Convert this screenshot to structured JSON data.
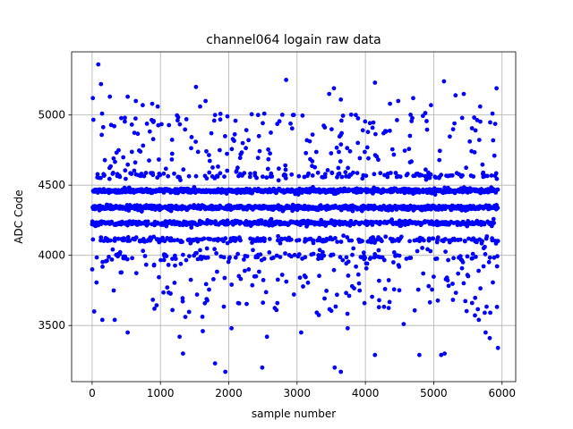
{
  "chart_data": {
    "type": "scatter",
    "title": "channel064 logain raw data",
    "xlabel": "sample number",
    "ylabel": "ADC Code",
    "xlim": [
      -300,
      6200
    ],
    "ylim": [
      3100,
      5450
    ],
    "x_ticks": [
      0,
      1000,
      2000,
      3000,
      4000,
      5000,
      6000
    ],
    "y_ticks": [
      3500,
      4000,
      4500,
      5000
    ],
    "grid": true,
    "marker_color": "#0000ff",
    "sample_range": [
      0,
      5940
    ],
    "band_levels": [
      4460,
      4340,
      4230,
      4110,
      4570,
      3990
    ],
    "outliers": [
      {
        "x": 10,
        "y": 5120
      },
      {
        "x": 90,
        "y": 5360
      },
      {
        "x": 130,
        "y": 5220
      },
      {
        "x": 260,
        "y": 5130
      },
      {
        "x": 480,
        "y": 4980
      },
      {
        "x": 520,
        "y": 5130
      },
      {
        "x": 640,
        "y": 5100
      },
      {
        "x": 740,
        "y": 5070
      },
      {
        "x": 880,
        "y": 5080
      },
      {
        "x": 960,
        "y": 5060
      },
      {
        "x": 1380,
        "y": 4970
      },
      {
        "x": 1520,
        "y": 5200
      },
      {
        "x": 1580,
        "y": 5060
      },
      {
        "x": 1660,
        "y": 5100
      },
      {
        "x": 1800,
        "y": 5000
      },
      {
        "x": 1980,
        "y": 4990
      },
      {
        "x": 2430,
        "y": 5000
      },
      {
        "x": 2520,
        "y": 5010
      },
      {
        "x": 2840,
        "y": 5250
      },
      {
        "x": 2940,
        "y": 5000
      },
      {
        "x": 3470,
        "y": 5150
      },
      {
        "x": 3540,
        "y": 5190
      },
      {
        "x": 3640,
        "y": 5110
      },
      {
        "x": 3860,
        "y": 5000
      },
      {
        "x": 4140,
        "y": 5230
      },
      {
        "x": 4360,
        "y": 5080
      },
      {
        "x": 4480,
        "y": 5100
      },
      {
        "x": 4700,
        "y": 5120
      },
      {
        "x": 4960,
        "y": 5070
      },
      {
        "x": 5150,
        "y": 5240
      },
      {
        "x": 5320,
        "y": 5140
      },
      {
        "x": 5440,
        "y": 5150
      },
      {
        "x": 5680,
        "y": 5060
      },
      {
        "x": 5860,
        "y": 5010
      },
      {
        "x": 5920,
        "y": 5190
      },
      {
        "x": 30,
        "y": 3600
      },
      {
        "x": 150,
        "y": 3540
      },
      {
        "x": 330,
        "y": 3540
      },
      {
        "x": 520,
        "y": 3450
      },
      {
        "x": 1280,
        "y": 3420
      },
      {
        "x": 1330,
        "y": 3300
      },
      {
        "x": 1620,
        "y": 3460
      },
      {
        "x": 1800,
        "y": 3230
      },
      {
        "x": 1950,
        "y": 3170
      },
      {
        "x": 2040,
        "y": 3480
      },
      {
        "x": 2490,
        "y": 3200
      },
      {
        "x": 2560,
        "y": 3420
      },
      {
        "x": 3060,
        "y": 3450
      },
      {
        "x": 3550,
        "y": 3200
      },
      {
        "x": 3640,
        "y": 3170
      },
      {
        "x": 3740,
        "y": 3480
      },
      {
        "x": 4140,
        "y": 3290
      },
      {
        "x": 4560,
        "y": 3510
      },
      {
        "x": 4790,
        "y": 3290
      },
      {
        "x": 5110,
        "y": 3290
      },
      {
        "x": 5160,
        "y": 3300
      },
      {
        "x": 5660,
        "y": 3540
      },
      {
        "x": 5760,
        "y": 3450
      },
      {
        "x": 5820,
        "y": 3410
      },
      {
        "x": 5940,
        "y": 3340
      }
    ]
  }
}
